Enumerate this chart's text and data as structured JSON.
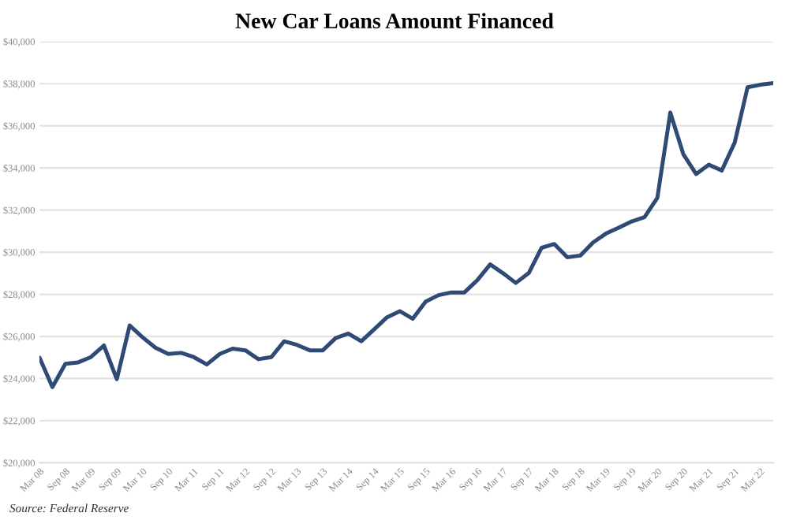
{
  "chart_data": {
    "type": "line",
    "title": "New Car Loans Amount Financed",
    "x": [
      "2008-03",
      "2008-06",
      "2008-09",
      "2008-12",
      "2009-03",
      "2009-06",
      "2009-09",
      "2009-12",
      "2010-03",
      "2010-06",
      "2010-09",
      "2010-12",
      "2011-03",
      "2011-06",
      "2011-09",
      "2011-12",
      "2012-03",
      "2012-06",
      "2012-09",
      "2012-12",
      "2013-03",
      "2013-06",
      "2013-09",
      "2013-12",
      "2014-03",
      "2014-06",
      "2014-09",
      "2014-12",
      "2015-03",
      "2015-06",
      "2015-09",
      "2015-12",
      "2016-03",
      "2016-06",
      "2016-09",
      "2016-12",
      "2017-03",
      "2017-06",
      "2017-09",
      "2017-12",
      "2018-03",
      "2018-06",
      "2018-09",
      "2018-12",
      "2019-03",
      "2019-06",
      "2019-09",
      "2019-12",
      "2020-03",
      "2020-06",
      "2020-09",
      "2020-12",
      "2021-03",
      "2021-06",
      "2021-09",
      "2021-12",
      "2022-03",
      "2022-06"
    ],
    "series": [
      {
        "color": "#2e4a75",
        "values": [
          25000,
          23600,
          24700,
          24770,
          25020,
          25570,
          23970,
          26520,
          25970,
          25470,
          25170,
          25220,
          25020,
          24670,
          25170,
          25420,
          25340,
          24920,
          25020,
          25770,
          25600,
          25340,
          25340,
          25920,
          26140,
          25770,
          26340,
          26910,
          27200,
          26840,
          27660,
          27960,
          28090,
          28090,
          28670,
          29420,
          29010,
          28540,
          29010,
          30210,
          30390,
          29760,
          29840,
          30460,
          30880,
          31160,
          31460,
          31660,
          32580,
          36630,
          34660,
          33710,
          34160,
          33880,
          35210,
          37830,
          37950,
          38030
        ]
      }
    ],
    "xlim": [
      "2008-03",
      "2022-06"
    ],
    "xticks": [
      {
        "value": "2008-03",
        "label": "Mar 08"
      },
      {
        "value": "2008-09",
        "label": "Sep 08"
      },
      {
        "value": "2009-03",
        "label": "Mar 09"
      },
      {
        "value": "2009-09",
        "label": "Sep 09"
      },
      {
        "value": "2010-03",
        "label": "Mar 10"
      },
      {
        "value": "2010-09",
        "label": "Sep 10"
      },
      {
        "value": "2011-03",
        "label": "Mar 11"
      },
      {
        "value": "2011-09",
        "label": "Sep 11"
      },
      {
        "value": "2012-03",
        "label": "Mar 12"
      },
      {
        "value": "2012-09",
        "label": "Sep 12"
      },
      {
        "value": "2013-03",
        "label": "Mar 13"
      },
      {
        "value": "2013-09",
        "label": "Sep 13"
      },
      {
        "value": "2014-03",
        "label": "Mar 14"
      },
      {
        "value": "2014-09",
        "label": "Sep 14"
      },
      {
        "value": "2015-03",
        "label": "Mar 15"
      },
      {
        "value": "2015-09",
        "label": "Sep 15"
      },
      {
        "value": "2016-03",
        "label": "Mar 16"
      },
      {
        "value": "2016-09",
        "label": "Sep 16"
      },
      {
        "value": "2017-03",
        "label": "Mar 17"
      },
      {
        "value": "2017-09",
        "label": "Sep 17"
      },
      {
        "value": "2018-03",
        "label": "Mar 18"
      },
      {
        "value": "2018-09",
        "label": "Sep 18"
      },
      {
        "value": "2019-03",
        "label": "Mar 19"
      },
      {
        "value": "2019-09",
        "label": "Sep 19"
      },
      {
        "value": "2020-03",
        "label": "Mar 20"
      },
      {
        "value": "2020-09",
        "label": "Sep 20"
      },
      {
        "value": "2021-03",
        "label": "Mar 21"
      },
      {
        "value": "2021-09",
        "label": "Sep 21"
      },
      {
        "value": "2022-03",
        "label": "Mar 22"
      }
    ],
    "ylim": [
      20000,
      40000
    ],
    "yticks": [
      {
        "value": 20000,
        "label": "$20,000"
      },
      {
        "value": 22000,
        "label": "$22,000"
      },
      {
        "value": 24000,
        "label": "$24,000"
      },
      {
        "value": 26000,
        "label": "$26,000"
      },
      {
        "value": 28000,
        "label": "$28,000"
      },
      {
        "value": 30000,
        "label": "$30,000"
      },
      {
        "value": 32000,
        "label": "$32,000"
      },
      {
        "value": 34000,
        "label": "$34,000"
      },
      {
        "value": 36000,
        "label": "$36,000"
      },
      {
        "value": 38000,
        "label": "$38,000"
      },
      {
        "value": 40000,
        "label": "$40,000"
      }
    ],
    "grid": "y",
    "annotations": [
      "Source: Federal Reserve"
    ]
  }
}
